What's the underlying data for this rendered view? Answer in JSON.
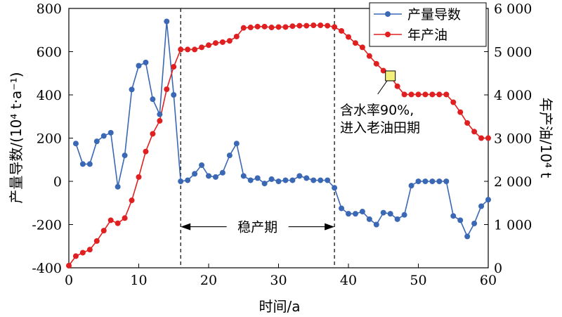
{
  "chart_data": {
    "type": "line",
    "xlabel": "时间/a",
    "ylabel_left": "产量导数/(10⁴ t·a⁻¹)",
    "ylabel_right": "年产油/10⁴ t",
    "xlim": [
      0,
      60
    ],
    "ylim_left": [
      -400,
      800
    ],
    "ylim_right": [
      0,
      6000
    ],
    "x_ticks": [
      "0",
      "10",
      "20",
      "30",
      "40",
      "50",
      "60"
    ],
    "y_left_ticks": [
      "-400",
      "-200",
      "0",
      "200",
      "400",
      "600",
      "800"
    ],
    "y_right_ticks": [
      "0",
      "1 000",
      "2 000",
      "3 000",
      "4 000",
      "5 000",
      "6 000"
    ],
    "grid": false,
    "legend_position": "top-right",
    "series": [
      {
        "name": "产量导数",
        "axis": "left",
        "color": "#3a68b4",
        "x": [
          1,
          2,
          3,
          4,
          5,
          6,
          7,
          8,
          9,
          10,
          11,
          12,
          13,
          14,
          15,
          16,
          17,
          18,
          19,
          20,
          21,
          22,
          23,
          24,
          25,
          26,
          27,
          28,
          29,
          30,
          31,
          32,
          33,
          34,
          35,
          36,
          37,
          38,
          39,
          40,
          41,
          42,
          43,
          44,
          45,
          46,
          47,
          48,
          49,
          50,
          51,
          52,
          53,
          54,
          55,
          56,
          57,
          58,
          59,
          60
        ],
        "values": [
          175,
          80,
          80,
          185,
          210,
          225,
          -25,
          120,
          425,
          535,
          550,
          380,
          310,
          740,
          400,
          0,
          5,
          35,
          75,
          25,
          20,
          40,
          120,
          175,
          25,
          5,
          15,
          -10,
          10,
          0,
          5,
          5,
          25,
          15,
          5,
          5,
          5,
          -30,
          -125,
          -150,
          -150,
          -140,
          -175,
          -200,
          -145,
          -150,
          -175,
          -155,
          -20,
          0,
          0,
          0,
          0,
          0,
          -160,
          -180,
          -255,
          -195,
          -115,
          -85
        ]
      },
      {
        "name": "年产油",
        "axis": "right",
        "color": "#e02020",
        "x": [
          0,
          1,
          2,
          3,
          4,
          5,
          6,
          7,
          8,
          9,
          10,
          11,
          12,
          13,
          14,
          15,
          16,
          17,
          18,
          19,
          20,
          21,
          22,
          23,
          24,
          25,
          26,
          27,
          28,
          29,
          30,
          31,
          32,
          33,
          34,
          35,
          36,
          37,
          38,
          39,
          40,
          41,
          42,
          43,
          44,
          45,
          46,
          47,
          48,
          49,
          50,
          51,
          52,
          53,
          54,
          55,
          56,
          57,
          58,
          59,
          60
        ],
        "values": [
          50,
          270,
          350,
          420,
          620,
          860,
          1100,
          1030,
          1150,
          1560,
          2100,
          2690,
          3100,
          3400,
          4130,
          4650,
          5050,
          5050,
          5050,
          5100,
          5150,
          5200,
          5220,
          5250,
          5350,
          5550,
          5560,
          5580,
          5580,
          5560,
          5570,
          5570,
          5590,
          5600,
          5600,
          5610,
          5610,
          5600,
          5570,
          5480,
          5340,
          5200,
          5100,
          4900,
          4720,
          4560,
          4430,
          4200,
          4010,
          4010,
          4010,
          4010,
          4010,
          4010,
          4010,
          3830,
          3600,
          3350,
          3150,
          3000,
          3000
        ]
      }
    ],
    "markers": [
      {
        "name": "highlight-point",
        "axis": "right",
        "x": 46,
        "y": 4440,
        "color": "#f2ef7a"
      }
    ],
    "vlines": [
      16,
      38
    ],
    "annotations": [
      {
        "text": "稳产期",
        "x": 27,
        "y_left": -210
      },
      {
        "text": "含水率90%,",
        "line": 1
      },
      {
        "text": "进入老油田期",
        "line": 2
      }
    ]
  }
}
